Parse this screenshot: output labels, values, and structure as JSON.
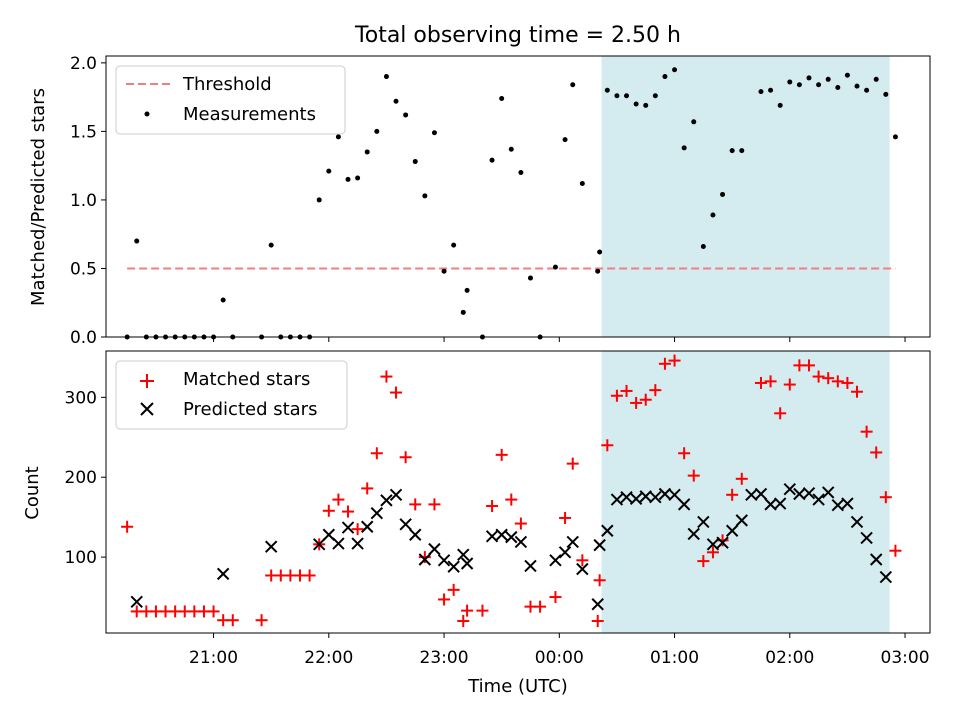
{
  "chart_data": [
    {
      "type": "scatter",
      "title": "Total observing time = 2.50 h",
      "xlabel": "",
      "ylabel": "Matched/Predicted stars",
      "ylim": [
        0,
        2.05
      ],
      "y_ticks": [
        "0.0",
        "0.5",
        "1.0",
        "1.5",
        "2.0"
      ],
      "legend_position": "top-left",
      "threshold": {
        "name": "Threshold",
        "value": 0.5,
        "color": "#f07f7f"
      },
      "highlight": {
        "from": "00:22",
        "to": "02:52",
        "color": "#d4ebf0"
      },
      "series": [
        {
          "name": "Measurements",
          "color": "#000000",
          "points": [
            [
              "20:15",
              0.0
            ],
            [
              "20:20",
              0.7
            ],
            [
              "20:25",
              0.0
            ],
            [
              "20:30",
              0.0
            ],
            [
              "20:35",
              0.0
            ],
            [
              "20:40",
              0.0
            ],
            [
              "20:45",
              0.0
            ],
            [
              "20:50",
              0.0
            ],
            [
              "20:55",
              0.0
            ],
            [
              "21:00",
              0.0
            ],
            [
              "21:05",
              0.27
            ],
            [
              "21:10",
              0.0
            ],
            [
              "21:25",
              0.0
            ],
            [
              "21:30",
              0.67
            ],
            [
              "21:35",
              0.0
            ],
            [
              "21:40",
              0.0
            ],
            [
              "21:45",
              0.0
            ],
            [
              "21:50",
              0.0
            ],
            [
              "21:55",
              1.0
            ],
            [
              "22:00",
              1.21
            ],
            [
              "22:05",
              1.46
            ],
            [
              "22:10",
              1.15
            ],
            [
              "22:15",
              1.16
            ],
            [
              "22:20",
              1.35
            ],
            [
              "22:25",
              1.5
            ],
            [
              "22:30",
              1.9
            ],
            [
              "22:35",
              1.72
            ],
            [
              "22:40",
              1.62
            ],
            [
              "22:45",
              1.28
            ],
            [
              "22:50",
              1.03
            ],
            [
              "22:55",
              1.49
            ],
            [
              "23:00",
              0.48
            ],
            [
              "23:05",
              0.67
            ],
            [
              "23:10",
              0.18
            ],
            [
              "23:12",
              0.34
            ],
            [
              "23:20",
              0.0
            ],
            [
              "23:25",
              1.29
            ],
            [
              "23:30",
              1.74
            ],
            [
              "23:35",
              1.37
            ],
            [
              "23:40",
              1.2
            ],
            [
              "23:45",
              0.43
            ],
            [
              "23:50",
              0.0
            ],
            [
              "23:58",
              0.51
            ],
            [
              "00:03",
              1.44
            ],
            [
              "00:07",
              1.84
            ],
            [
              "00:12",
              1.12
            ],
            [
              "00:20",
              0.48
            ],
            [
              "00:21",
              0.62
            ],
            [
              "00:25",
              1.8
            ],
            [
              "00:30",
              1.76
            ],
            [
              "00:35",
              1.76
            ],
            [
              "00:40",
              1.7
            ],
            [
              "00:45",
              1.69
            ],
            [
              "00:50",
              1.76
            ],
            [
              "00:55",
              1.9
            ],
            [
              "01:00",
              1.95
            ],
            [
              "01:05",
              1.38
            ],
            [
              "01:10",
              1.57
            ],
            [
              "01:15",
              0.66
            ],
            [
              "01:20",
              0.89
            ],
            [
              "01:25",
              1.04
            ],
            [
              "01:30",
              1.36
            ],
            [
              "01:35",
              1.36
            ],
            [
              "01:45",
              1.79
            ],
            [
              "01:50",
              1.8
            ],
            [
              "01:55",
              1.69
            ],
            [
              "02:00",
              1.86
            ],
            [
              "02:05",
              1.84
            ],
            [
              "02:10",
              1.89
            ],
            [
              "02:15",
              1.84
            ],
            [
              "02:20",
              1.88
            ],
            [
              "02:25",
              1.82
            ],
            [
              "02:30",
              1.91
            ],
            [
              "02:35",
              1.83
            ],
            [
              "02:40",
              1.8
            ],
            [
              "02:45",
              1.88
            ],
            [
              "02:50",
              1.77
            ],
            [
              "02:55",
              1.46
            ]
          ]
        }
      ]
    },
    {
      "type": "scatter",
      "title": "",
      "xlabel": "Time (UTC)",
      "ylabel": "Count",
      "ylim": [
        5,
        358
      ],
      "y_ticks": [
        "100",
        "200",
        "300"
      ],
      "x_ticks": [
        "21:00",
        "22:00",
        "23:00",
        "00:00",
        "01:00",
        "02:00",
        "03:00"
      ],
      "legend_position": "top-left",
      "highlight": {
        "from": "00:22",
        "to": "02:52",
        "color": "#d4ebf0"
      },
      "series": [
        {
          "name": "Matched stars",
          "marker": "plus",
          "color": "#ff0000",
          "points": [
            [
              "20:15",
              138
            ],
            [
              "20:20",
              32
            ],
            [
              "20:25",
              32
            ],
            [
              "20:30",
              32
            ],
            [
              "20:35",
              32
            ],
            [
              "20:40",
              32
            ],
            [
              "20:45",
              32
            ],
            [
              "20:50",
              32
            ],
            [
              "20:55",
              32
            ],
            [
              "21:00",
              32
            ],
            [
              "21:05",
              21
            ],
            [
              "21:10",
              21
            ],
            [
              "21:25",
              21
            ],
            [
              "21:30",
              77
            ],
            [
              "21:35",
              77
            ],
            [
              "21:40",
              77
            ],
            [
              "21:45",
              77
            ],
            [
              "21:50",
              77
            ],
            [
              "21:55",
              116
            ],
            [
              "22:00",
              158
            ],
            [
              "22:05",
              172
            ],
            [
              "22:10",
              157
            ],
            [
              "22:15",
              135
            ],
            [
              "22:20",
              186
            ],
            [
              "22:25",
              230
            ],
            [
              "22:30",
              326
            ],
            [
              "22:35",
              306
            ],
            [
              "22:40",
              225
            ],
            [
              "22:45",
              166
            ],
            [
              "22:50",
              100
            ],
            [
              "22:55",
              166
            ],
            [
              "23:00",
              47
            ],
            [
              "23:05",
              59
            ],
            [
              "23:10",
              20
            ],
            [
              "23:12",
              33
            ],
            [
              "23:20",
              33
            ],
            [
              "23:25",
              164
            ],
            [
              "23:30",
              228
            ],
            [
              "23:35",
              172
            ],
            [
              "23:40",
              142
            ],
            [
              "23:45",
              38
            ],
            [
              "23:50",
              38
            ],
            [
              "23:58",
              50
            ],
            [
              "00:03",
              149
            ],
            [
              "00:07",
              217
            ],
            [
              "00:12",
              96
            ],
            [
              "00:20",
              20
            ],
            [
              "00:21",
              71
            ],
            [
              "00:25",
              240
            ],
            [
              "00:30",
              302
            ],
            [
              "00:35",
              308
            ],
            [
              "00:40",
              293
            ],
            [
              "00:45",
              297
            ],
            [
              "00:50",
              309
            ],
            [
              "00:55",
              342
            ],
            [
              "01:00",
              346
            ],
            [
              "01:05",
              230
            ],
            [
              "01:10",
              202
            ],
            [
              "01:15",
              95
            ],
            [
              "01:20",
              106
            ],
            [
              "01:25",
              121
            ],
            [
              "01:30",
              178
            ],
            [
              "01:35",
              198
            ],
            [
              "01:45",
              318
            ],
            [
              "01:50",
              320
            ],
            [
              "01:55",
              280
            ],
            [
              "02:00",
              316
            ],
            [
              "02:05",
              340
            ],
            [
              "02:10",
              340
            ],
            [
              "02:15",
              326
            ],
            [
              "02:20",
              324
            ],
            [
              "02:25",
              320
            ],
            [
              "02:30",
              318
            ],
            [
              "02:35",
              307
            ],
            [
              "02:40",
              257
            ],
            [
              "02:45",
              231
            ],
            [
              "02:50",
              175
            ],
            [
              "02:55",
              108
            ]
          ]
        },
        {
          "name": "Predicted stars",
          "marker": "x",
          "color": "#000000",
          "points": [
            [
              "20:20",
              44
            ],
            [
              "21:05",
              79
            ],
            [
              "21:30",
              113
            ],
            [
              "21:55",
              116
            ],
            [
              "22:00",
              128
            ],
            [
              "22:05",
              117
            ],
            [
              "22:10",
              137
            ],
            [
              "22:15",
              117
            ],
            [
              "22:20",
              138
            ],
            [
              "22:25",
              155
            ],
            [
              "22:30",
              171
            ],
            [
              "22:35",
              178
            ],
            [
              "22:40",
              141
            ],
            [
              "22:45",
              128
            ],
            [
              "22:50",
              97
            ],
            [
              "22:55",
              110
            ],
            [
              "23:00",
              96
            ],
            [
              "23:05",
              88
            ],
            [
              "23:10",
              103
            ],
            [
              "23:12",
              92
            ],
            [
              "23:25",
              126
            ],
            [
              "23:30",
              128
            ],
            [
              "23:35",
              125
            ],
            [
              "23:40",
              119
            ],
            [
              "23:45",
              89
            ],
            [
              "23:58",
              96
            ],
            [
              "00:03",
              106
            ],
            [
              "00:07",
              119
            ],
            [
              "00:12",
              85
            ],
            [
              "00:20",
              41
            ],
            [
              "00:21",
              115
            ],
            [
              "00:25",
              133
            ],
            [
              "00:30",
              172
            ],
            [
              "00:35",
              175
            ],
            [
              "00:40",
              173
            ],
            [
              "00:45",
              176
            ],
            [
              "00:50",
              175
            ],
            [
              "00:55",
              179
            ],
            [
              "01:00",
              178
            ],
            [
              "01:05",
              166
            ],
            [
              "01:10",
              129
            ],
            [
              "01:15",
              144
            ],
            [
              "01:20",
              116
            ],
            [
              "01:25",
              118
            ],
            [
              "01:30",
              133
            ],
            [
              "01:35",
              146
            ],
            [
              "01:40",
              178
            ],
            [
              "01:45",
              179
            ],
            [
              "01:50",
              166
            ],
            [
              "01:55",
              167
            ],
            [
              "02:00",
              185
            ],
            [
              "02:05",
              179
            ],
            [
              "02:10",
              180
            ],
            [
              "02:15",
              172
            ],
            [
              "02:20",
              181
            ],
            [
              "02:25",
              165
            ],
            [
              "02:30",
              167
            ],
            [
              "02:35",
              144
            ],
            [
              "02:40",
              124
            ],
            [
              "02:45",
              97
            ],
            [
              "02:50",
              75
            ]
          ]
        }
      ]
    }
  ]
}
